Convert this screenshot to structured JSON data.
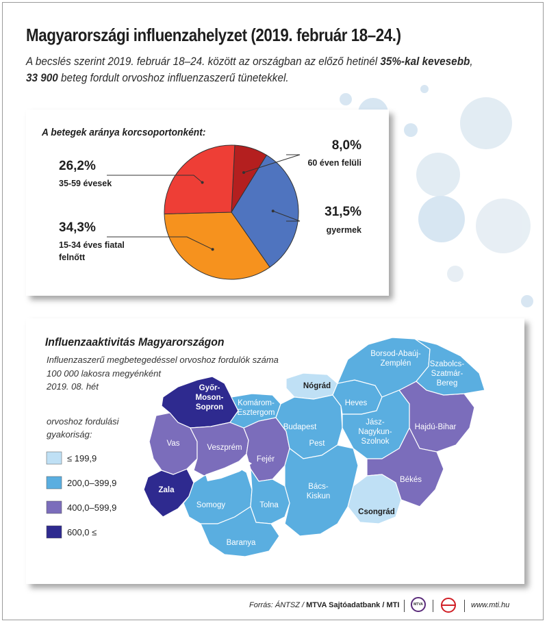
{
  "title": "Magyarországi influenzahelyzet (2019. február 18–24.)",
  "subtitle": {
    "part1": "A becslés szerint 2019. február 18–24. között az országban az előző hetinél ",
    "bold1": "35%-kal kevesebb",
    "part2": ",",
    "bold2": "33 900",
    "part3": " beteg fordult orvoshoz influenzaszerű tünetekkel."
  },
  "colors": {
    "pie_60plus": "#b41f1f",
    "pie_child": "#4f74bf",
    "pie_15_34": "#f6921e",
    "pie_35_59": "#ee3e36",
    "map_le199": "#bfe0f5",
    "map_200_399": "#5aaee0",
    "map_400_599": "#7b6dbb",
    "map_600plus": "#2e2a8f"
  },
  "chart_data": [
    {
      "type": "pie",
      "title": "A betegek aránya korcsoportonként:",
      "slices": [
        {
          "label": "60 éven felüli",
          "value": 8.0,
          "value_label": "8,0%"
        },
        {
          "label": "gyermek",
          "value": 31.5,
          "value_label": "31,5%"
        },
        {
          "label": "15-34 éves fiatal felnőtt",
          "value": 34.3,
          "value_label": "34,3%"
        },
        {
          "label": "35-59 évesek",
          "value": 26.2,
          "value_label": "26,2%"
        }
      ]
    },
    {
      "type": "choropleth",
      "title": "Influenzaaktivitás Magyarországon",
      "subtitle": [
        "Influenzaszerű megbetegedéssel orvoshoz fordulók száma",
        "100 000 lakosra megyénként",
        "2019. 08. hét"
      ],
      "legend_title": [
        "orvoshoz fordulási",
        "gyakoriság:"
      ],
      "legend": [
        {
          "label": "≤ 199,9",
          "class": "map_le199"
        },
        {
          "label": "200,0–399,9",
          "class": "map_200_399"
        },
        {
          "label": "400,0–599,9",
          "class": "map_400_599"
        },
        {
          "label": "600,0   ≤",
          "class": "map_600plus"
        }
      ],
      "regions": [
        {
          "name": "Győr-Moson-Sopron",
          "lines": [
            "Győr-",
            "Moson-",
            "Sopron"
          ],
          "class": "map_600plus"
        },
        {
          "name": "Zala",
          "lines": [
            "Zala"
          ],
          "class": "map_600plus"
        },
        {
          "name": "Vas",
          "lines": [
            "Vas"
          ],
          "class": "map_400_599"
        },
        {
          "name": "Veszprém",
          "lines": [
            "Veszprém"
          ],
          "class": "map_400_599"
        },
        {
          "name": "Fejér",
          "lines": [
            "Fejér"
          ],
          "class": "map_400_599"
        },
        {
          "name": "Hajdú-Bihar",
          "lines": [
            "Hajdú-Bihar"
          ],
          "class": "map_400_599"
        },
        {
          "name": "Békés",
          "lines": [
            "Békés"
          ],
          "class": "map_400_599"
        },
        {
          "name": "Nógrád",
          "lines": [
            "Nógrád"
          ],
          "class": "map_le199"
        },
        {
          "name": "Csongrád",
          "lines": [
            "Csongrád"
          ],
          "class": "map_le199"
        },
        {
          "name": "Komárom-Esztergom",
          "lines": [
            "Komárom-",
            "Esztergom"
          ],
          "class": "map_200_399"
        },
        {
          "name": "Budapest",
          "lines": [
            "Budapest"
          ],
          "class": "map_200_399"
        },
        {
          "name": "Pest",
          "lines": [
            "Pest"
          ],
          "class": "map_200_399"
        },
        {
          "name": "Heves",
          "lines": [
            "Heves"
          ],
          "class": "map_200_399"
        },
        {
          "name": "Borsod-Abaúj-Zemplén",
          "lines": [
            "Borsod-Abaúj-",
            "Zemplén"
          ],
          "class": "map_200_399"
        },
        {
          "name": "Szabolcs-Szatmár-Bereg",
          "lines": [
            "Szabolcs-",
            "Szatmár-",
            "Bereg"
          ],
          "class": "map_200_399"
        },
        {
          "name": "Jász-Nagykun-Szolnok",
          "lines": [
            "Jász-",
            "Nagykun-",
            "Szolnok"
          ],
          "class": "map_200_399"
        },
        {
          "name": "Bács-Kiskun",
          "lines": [
            "Bács-",
            "Kiskun"
          ],
          "class": "map_200_399"
        },
        {
          "name": "Somogy",
          "lines": [
            "Somogy"
          ],
          "class": "map_200_399"
        },
        {
          "name": "Tolna",
          "lines": [
            "Tolna"
          ],
          "class": "map_200_399"
        },
        {
          "name": "Baranya",
          "lines": [
            "Baranya"
          ],
          "class": "map_200_399"
        }
      ]
    }
  ],
  "footer": {
    "source_prefix": "Forrás: ÁNTSZ / ",
    "source_bold": "MTVA Sajtóadatbank / MTI",
    "mtva_logo_text": "MTVA",
    "url": "www.mti.hu"
  }
}
